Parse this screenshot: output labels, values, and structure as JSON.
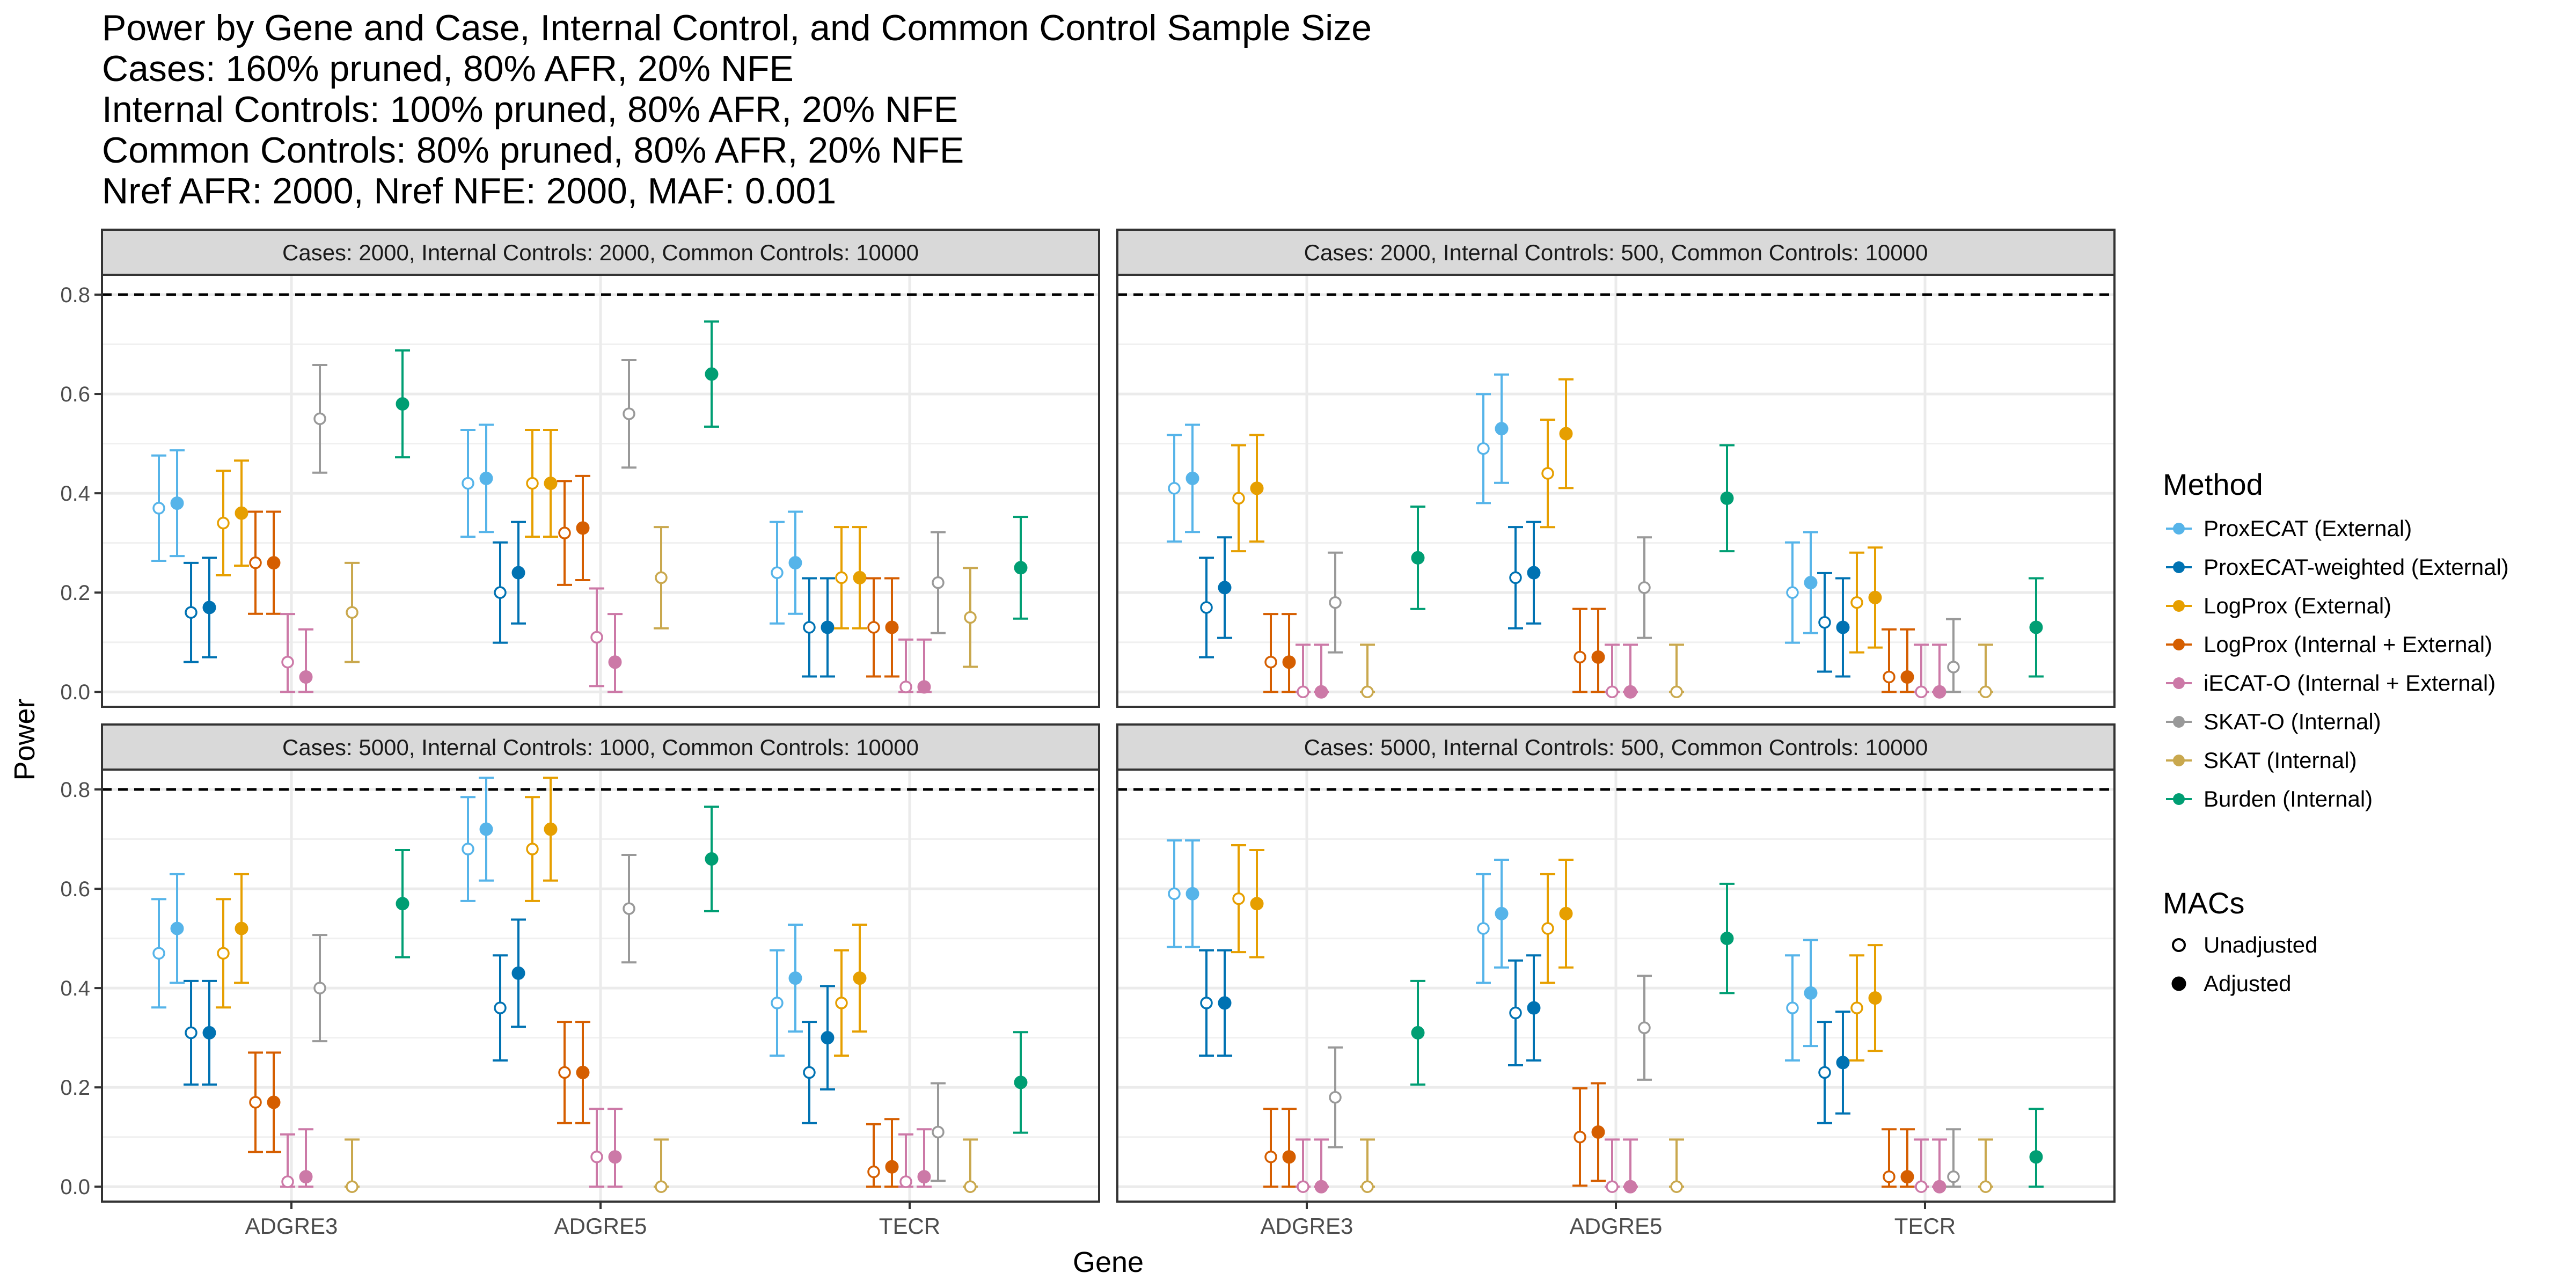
{
  "title_lines": [
    "Power by Gene and Case, Internal Control, and Common Control Sample Size",
    "Cases: 160% pruned, 80% AFR, 20% NFE",
    "Internal Controls: 100% pruned, 80% AFR, 20% NFE",
    "Common Controls: 80% pruned, 80% AFR, 20% NFE",
    "Nref AFR: 2000, Nref NFE: 2000, MAF: 0.001"
  ],
  "legend": {
    "method_title": "Method",
    "macs_title": "MACs",
    "macs": [
      "Unadjusted",
      "Adjusted"
    ]
  },
  "chart_data": {
    "type": "scatter",
    "subtype": "point-errorbar",
    "xlabel": "Gene",
    "ylabel": "Power",
    "ylim": [
      -0.03,
      0.84
    ],
    "yticks": [
      0.0,
      0.2,
      0.4,
      0.6,
      0.8
    ],
    "reference_line": 0.8,
    "genes": [
      "ADGRE3",
      "ADGRE5",
      "TECR"
    ],
    "methods": [
      {
        "name": "ProxECAT (External)",
        "color": "#56B4E9"
      },
      {
        "name": "ProxECAT-weighted (External)",
        "color": "#0072B2"
      },
      {
        "name": "LogProx (External)",
        "color": "#E69F00"
      },
      {
        "name": "LogProx (Internal + External)",
        "color": "#D55E00"
      },
      {
        "name": "iECAT-O (Internal + External)",
        "color": "#CC79A7"
      },
      {
        "name": "SKAT-O (Internal)",
        "color": "#999999"
      },
      {
        "name": "SKAT (Internal)",
        "color": "#C9A84E"
      },
      {
        "name": "Burden (Internal)",
        "color": "#009E73"
      }
    ],
    "panels": [
      {
        "label": "Cases: 2000, Internal Controls: 2000, Common Controls: 10000",
        "values": [
          [
            [
              0.37,
              0.38
            ],
            [
              0.42,
              0.43
            ],
            [
              0.24,
              0.26
            ]
          ],
          [
            [
              0.16,
              0.17
            ],
            [
              0.2,
              0.24
            ],
            [
              0.13,
              0.13
            ]
          ],
          [
            [
              0.34,
              0.36
            ],
            [
              0.42,
              0.42
            ],
            [
              0.23,
              0.23
            ]
          ],
          [
            [
              0.26,
              0.26
            ],
            [
              0.32,
              0.33
            ],
            [
              0.13,
              0.13
            ]
          ],
          [
            [
              0.06,
              0.03
            ],
            [
              0.11,
              0.06
            ],
            [
              0.01,
              0.01
            ]
          ],
          [
            [
              0.55,
              null
            ],
            [
              0.56,
              null
            ],
            [
              0.22,
              null
            ]
          ],
          [
            [
              0.16,
              null
            ],
            [
              0.23,
              null
            ],
            [
              0.15,
              null
            ]
          ],
          [
            [
              null,
              0.58
            ],
            [
              null,
              0.64
            ],
            [
              null,
              0.25
            ]
          ]
        ]
      },
      {
        "label": "Cases: 2000, Internal Controls: 500, Common Controls: 10000",
        "values": [
          [
            [
              0.41,
              0.43
            ],
            [
              0.49,
              0.53
            ],
            [
              0.2,
              0.22
            ]
          ],
          [
            [
              0.17,
              0.21
            ],
            [
              0.23,
              0.24
            ],
            [
              0.14,
              0.13
            ]
          ],
          [
            [
              0.39,
              0.41
            ],
            [
              0.44,
              0.52
            ],
            [
              0.18,
              0.19
            ]
          ],
          [
            [
              0.06,
              0.06
            ],
            [
              0.07,
              0.07
            ],
            [
              0.03,
              0.03
            ]
          ],
          [
            [
              0.0,
              0.0
            ],
            [
              0.0,
              0.0
            ],
            [
              0.0,
              0.0
            ]
          ],
          [
            [
              0.18,
              null
            ],
            [
              0.21,
              null
            ],
            [
              0.05,
              null
            ]
          ],
          [
            [
              0.0,
              null
            ],
            [
              0.0,
              null
            ],
            [
              0.0,
              null
            ]
          ],
          [
            [
              null,
              0.27
            ],
            [
              null,
              0.39
            ],
            [
              null,
              0.13
            ]
          ]
        ]
      },
      {
        "label": "Cases: 5000, Internal Controls: 1000, Common Controls: 10000",
        "values": [
          [
            [
              0.47,
              0.52
            ],
            [
              0.68,
              0.72
            ],
            [
              0.37,
              0.42
            ]
          ],
          [
            [
              0.31,
              0.31
            ],
            [
              0.36,
              0.43
            ],
            [
              0.23,
              0.3
            ]
          ],
          [
            [
              0.47,
              0.52
            ],
            [
              0.68,
              0.72
            ],
            [
              0.37,
              0.42
            ]
          ],
          [
            [
              0.17,
              0.17
            ],
            [
              0.23,
              0.23
            ],
            [
              0.03,
              0.04
            ]
          ],
          [
            [
              0.01,
              0.02
            ],
            [
              0.06,
              0.06
            ],
            [
              0.01,
              0.02
            ]
          ],
          [
            [
              0.4,
              null
            ],
            [
              0.56,
              null
            ],
            [
              0.11,
              null
            ]
          ],
          [
            [
              0.0,
              null
            ],
            [
              0.0,
              null
            ],
            [
              0.0,
              null
            ]
          ],
          [
            [
              null,
              0.57
            ],
            [
              null,
              0.66
            ],
            [
              null,
              0.21
            ]
          ]
        ]
      },
      {
        "label": "Cases: 5000, Internal Controls: 500, Common Controls: 10000",
        "values": [
          [
            [
              0.59,
              0.59
            ],
            [
              0.52,
              0.55
            ],
            [
              0.36,
              0.39
            ]
          ],
          [
            [
              0.37,
              0.37
            ],
            [
              0.35,
              0.36
            ],
            [
              0.23,
              0.25
            ]
          ],
          [
            [
              0.58,
              0.57
            ],
            [
              0.52,
              0.55
            ],
            [
              0.36,
              0.38
            ]
          ],
          [
            [
              0.06,
              0.06
            ],
            [
              0.1,
              0.11
            ],
            [
              0.02,
              0.02
            ]
          ],
          [
            [
              0.0,
              0.0
            ],
            [
              0.0,
              0.0
            ],
            [
              0.0,
              0.0
            ]
          ],
          [
            [
              0.18,
              null
            ],
            [
              0.32,
              null
            ],
            [
              0.02,
              null
            ]
          ],
          [
            [
              0.0,
              null
            ],
            [
              0.0,
              null
            ],
            [
              0.0,
              null
            ]
          ],
          [
            [
              null,
              0.31
            ],
            [
              null,
              0.5
            ],
            [
              null,
              0.06
            ]
          ]
        ]
      }
    ]
  }
}
